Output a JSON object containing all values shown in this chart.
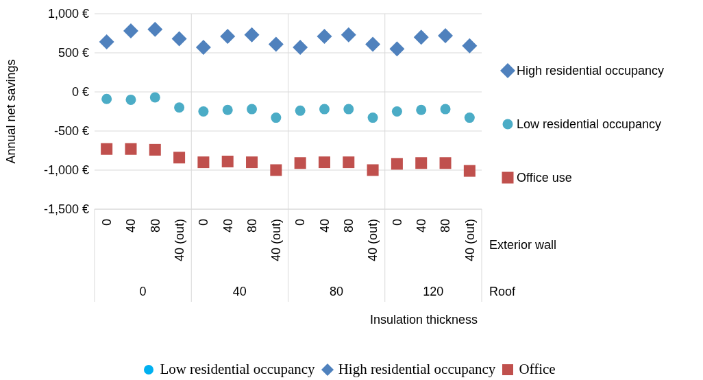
{
  "chart_data": {
    "type": "scatter",
    "ylabel": "Annual net savings",
    "xlabel": "Insulation thickness",
    "categories": [
      "0",
      "40",
      "80",
      "40 (out)",
      "0",
      "40",
      "80",
      "40 (out)",
      "0",
      "40",
      "80",
      "40 (out)",
      "0",
      "40",
      "80",
      "40 (out)"
    ],
    "series": [
      {
        "name": "High residential occupancy",
        "color": "#4f81bd",
        "marker": "diamond",
        "values": [
          640,
          780,
          800,
          680,
          570,
          710,
          730,
          610,
          570,
          710,
          730,
          610,
          550,
          700,
          720,
          590
        ]
      },
      {
        "name": "Low residential occupancy",
        "color": "#4bacc6",
        "marker": "circle",
        "values": [
          -90,
          -100,
          -70,
          -200,
          -250,
          -230,
          -220,
          -330,
          -240,
          -220,
          -220,
          -330,
          -250,
          -230,
          -220,
          -330
        ]
      },
      {
        "name": "Office use",
        "color": "#c0504d",
        "marker": "square",
        "values": [
          -730,
          -730,
          -740,
          -840,
          -900,
          -890,
          -900,
          -1000,
          -910,
          -900,
          -900,
          -1000,
          -920,
          -910,
          -910,
          -1010
        ]
      }
    ],
    "ylim": [
      -1500,
      1000
    ],
    "yticks": [
      {
        "value": -1500,
        "label": "-1,500 €"
      },
      {
        "value": -1000,
        "label": "-1,000 €"
      },
      {
        "value": -500,
        "label": "-500 €"
      },
      {
        "value": 0,
        "label": "0 €"
      },
      {
        "value": 500,
        "label": "500 €"
      },
      {
        "value": 1000,
        "label": "1,000 €"
      }
    ],
    "grid": true,
    "legend": "right",
    "annotations": [
      "Exterior wall",
      "Roof",
      "0",
      "40",
      "80",
      "120",
      "Low residential occupancy",
      "High residential occupancy",
      "Office"
    ]
  }
}
